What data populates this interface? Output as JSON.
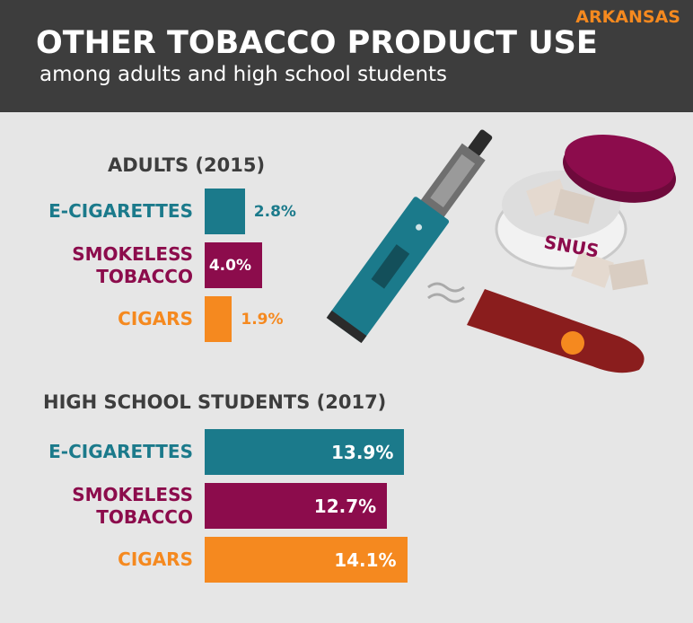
{
  "header": {
    "title": "OTHER TOBACCO PRODUCT USE",
    "subtitle": "among adults and high school students",
    "state": "ARKANSAS"
  },
  "illustration": {
    "tin_label": "SNUS"
  },
  "chart_data": [
    {
      "type": "bar",
      "orientation": "horizontal",
      "title": "ADULTS (2015)",
      "categories": [
        "E-CIGARETTES",
        "SMOKELESS TOBACCO",
        "CIGARS"
      ],
      "values": [
        2.8,
        4.0,
        1.9
      ],
      "value_labels": [
        "2.8%",
        "4.0%",
        "1.9%"
      ],
      "colors": [
        "#1b7a8b",
        "#8c0c4c",
        "#f5891f"
      ]
    },
    {
      "type": "bar",
      "orientation": "horizontal",
      "title": "HIGH SCHOOL STUDENTS (2017)",
      "categories": [
        "E-CIGARETTES",
        "SMOKELESS TOBACCO",
        "CIGARS"
      ],
      "values": [
        13.9,
        12.7,
        14.1
      ],
      "value_labels": [
        "13.9%",
        "12.7%",
        "14.1%"
      ],
      "colors": [
        "#1b7a8b",
        "#8c0c4c",
        "#f5891f"
      ]
    }
  ]
}
